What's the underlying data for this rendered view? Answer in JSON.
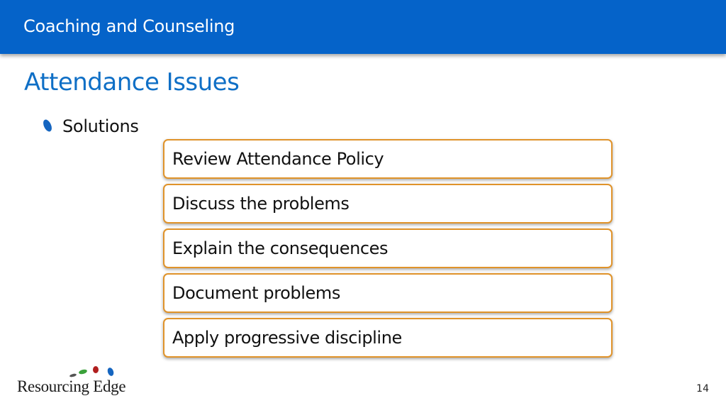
{
  "header": {
    "title": "Coaching and Counseling"
  },
  "slide": {
    "title": "Attendance Issues",
    "bullet": "Solutions",
    "solutions": [
      "Review Attendance Policy",
      "Discuss the problems",
      "Explain the consequences",
      "Document problems",
      "Apply progressive discipline"
    ]
  },
  "logo": {
    "text": "Resourcing Edge"
  },
  "page_number": "14",
  "colors": {
    "header_bg": "#0563c9",
    "title": "#0f6fc6",
    "box_border": "#e0932a",
    "bullet": "#1565c0"
  },
  "icons": {
    "bullet": "blue-leaf-bullet-icon",
    "logo_marks": "colored-dots-logo-icon"
  }
}
